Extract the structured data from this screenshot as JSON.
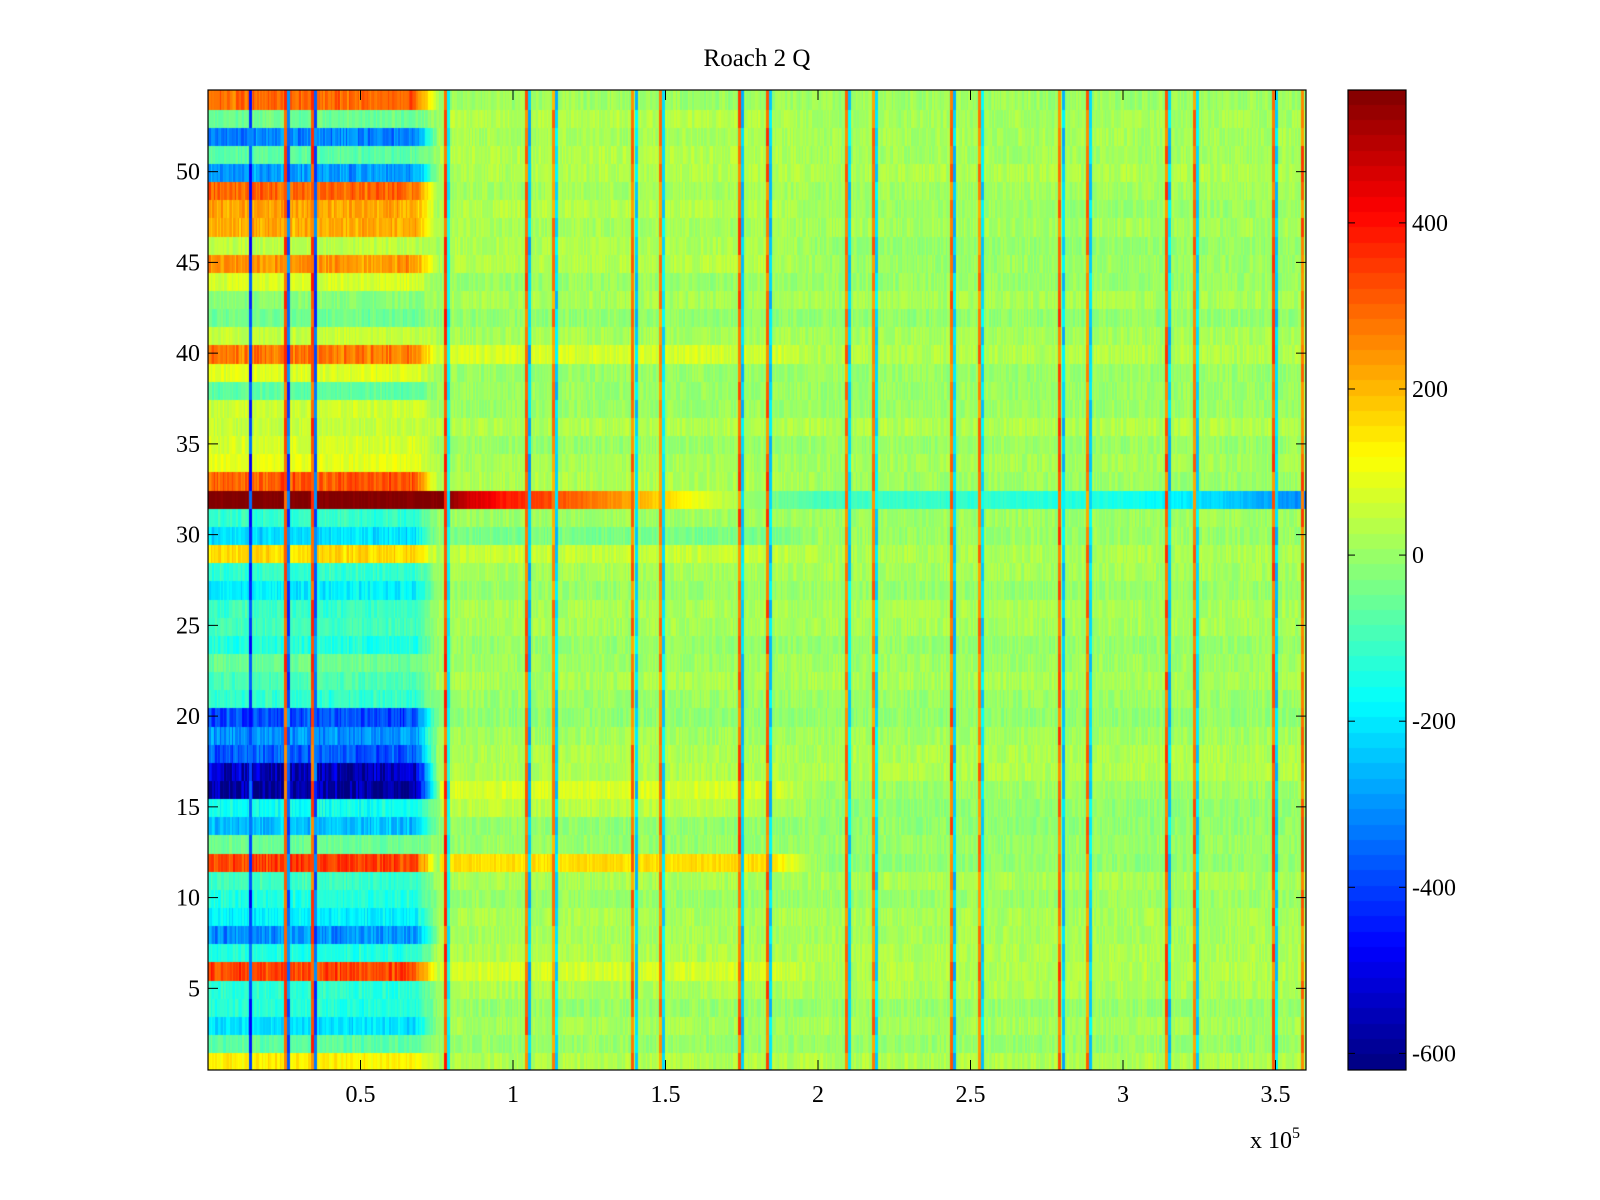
{
  "chart_data": {
    "type": "heatmap",
    "title": "Roach 2 Q",
    "xlabel": "",
    "ylabel": "",
    "x_exponent_label": "x 10",
    "x_exponent_power": "5",
    "xlim": [
      0,
      360000
    ],
    "ylim": [
      0.5,
      54.5
    ],
    "x_ticks": [
      50000,
      100000,
      150000,
      200000,
      250000,
      300000,
      350000
    ],
    "x_tick_labels": [
      "0.5",
      "1",
      "1.5",
      "2",
      "2.5",
      "3",
      "3.5"
    ],
    "y_ticks": [
      5,
      10,
      15,
      20,
      25,
      30,
      35,
      40,
      45,
      50
    ],
    "y_tick_labels": [
      "5",
      "10",
      "15",
      "20",
      "25",
      "30",
      "35",
      "40",
      "45",
      "50"
    ],
    "colormap": "jet",
    "color_range": [
      -620,
      560
    ],
    "colorbar_ticks": [
      400,
      200,
      0,
      -200,
      -400,
      -600
    ],
    "colorbar_tick_labels": [
      "400",
      "200",
      "0",
      "-200",
      "-400",
      "-600"
    ],
    "rows": 54,
    "grid": false,
    "row_bias_early": {
      "1": 120,
      "2": -80,
      "3": -220,
      "4": -150,
      "5": -140,
      "6": 320,
      "7": -150,
      "8": -320,
      "9": -200,
      "10": -150,
      "11": -120,
      "12": 330,
      "13": -60,
      "14": -260,
      "15": -170,
      "16": -600,
      "17": -560,
      "18": -380,
      "19": -310,
      "20": -400,
      "21": -130,
      "22": -100,
      "23": -60,
      "24": -150,
      "25": -110,
      "26": -120,
      "27": -200,
      "28": -130,
      "29": 150,
      "30": -220,
      "31": -130,
      "32": 560,
      "33": 300,
      "34": 80,
      "35": 60,
      "36": 40,
      "37": 50,
      "38": -80,
      "39": 70,
      "40": 260,
      "41": 40,
      "42": -60,
      "43": -30,
      "44": 60,
      "45": 230,
      "46": 30,
      "47": 200,
      "48": 210,
      "49": 280,
      "50": -300,
      "51": -80,
      "52": -330,
      "53": -60,
      "54": 280
    },
    "row_bias_mid": {
      "6": 40,
      "12": 160,
      "15": 50,
      "16": 70,
      "29": 30,
      "30": -40,
      "33": 20,
      "40": 40,
      "45": 30,
      "46": 30,
      "48": 30,
      "51": 20,
      "53": 20
    },
    "row_32_profile": [
      [
        0,
        560
      ],
      [
        78000,
        560
      ],
      [
        86000,
        470
      ],
      [
        98000,
        380
      ],
      [
        130000,
        260
      ],
      [
        152000,
        150
      ],
      [
        170000,
        40
      ],
      [
        185000,
        -40
      ],
      [
        200000,
        -100
      ],
      [
        300000,
        -150
      ],
      [
        330000,
        -220
      ],
      [
        360000,
        -320
      ]
    ],
    "vertical_stripes": [
      {
        "x": 14000,
        "value": -450
      },
      {
        "x": 25500,
        "value": 350
      },
      {
        "x": 26500,
        "value": -400
      },
      {
        "x": 34500,
        "value": 350
      },
      {
        "x": 35500,
        "value": -400
      },
      {
        "x": 78000,
        "value": 360
      },
      {
        "x": 79000,
        "value": -200
      },
      {
        "x": 104500,
        "value": 320
      },
      {
        "x": 105500,
        "value": -280
      },
      {
        "x": 113500,
        "value": 280
      },
      {
        "x": 114500,
        "value": -250
      },
      {
        "x": 139500,
        "value": 300
      },
      {
        "x": 140500,
        "value": -250
      },
      {
        "x": 148500,
        "value": 280
      },
      {
        "x": 149500,
        "value": -230
      },
      {
        "x": 174500,
        "value": 330
      },
      {
        "x": 175500,
        "value": -260
      },
      {
        "x": 183500,
        "value": 330
      },
      {
        "x": 184500,
        "value": -260
      },
      {
        "x": 209500,
        "value": 300
      },
      {
        "x": 210500,
        "value": -240
      },
      {
        "x": 218500,
        "value": 290
      },
      {
        "x": 219500,
        "value": -230
      },
      {
        "x": 244000,
        "value": 320
      },
      {
        "x": 245000,
        "value": -260
      },
      {
        "x": 253000,
        "value": 300
      },
      {
        "x": 254000,
        "value": -240
      },
      {
        "x": 279500,
        "value": 330
      },
      {
        "x": 280500,
        "value": -260
      },
      {
        "x": 288500,
        "value": 300
      },
      {
        "x": 289500,
        "value": -240
      },
      {
        "x": 314500,
        "value": 330
      },
      {
        "x": 315500,
        "value": -260
      },
      {
        "x": 323500,
        "value": 300
      },
      {
        "x": 324500,
        "value": -240
      },
      {
        "x": 349500,
        "value": 330
      },
      {
        "x": 350500,
        "value": -260
      },
      {
        "x": 359000,
        "value": 320
      }
    ]
  }
}
